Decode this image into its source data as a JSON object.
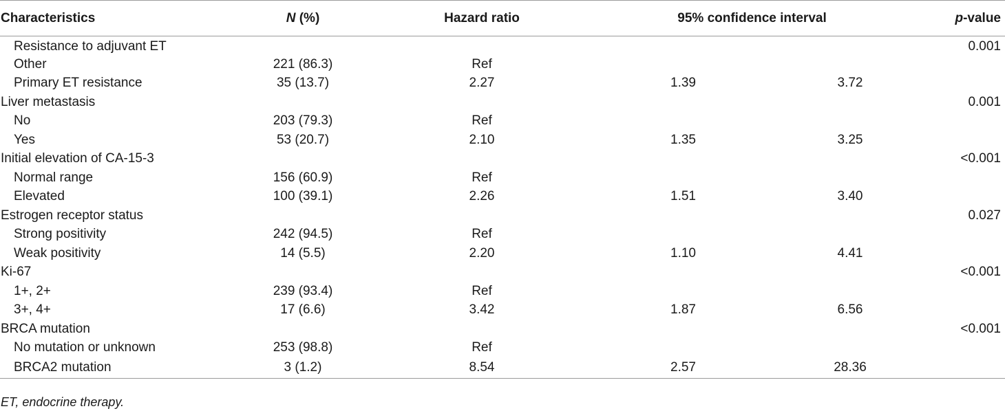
{
  "headers": {
    "characteristics": "Characteristics",
    "n_italic": "N",
    "n_suffix": " (%)",
    "hazard_ratio": "Hazard ratio",
    "ci": "95% confidence interval",
    "p_italic": "p",
    "p_suffix": "-value"
  },
  "rows": [
    {
      "label": "Resistance to adjuvant ET",
      "type": "sub",
      "n": "",
      "hr": "",
      "ci_low": "",
      "ci_high": "",
      "p": "0.001"
    },
    {
      "label": "Other",
      "type": "sub",
      "n": "221 (86.3)",
      "hr": "Ref",
      "ci_low": "",
      "ci_high": "",
      "p": ""
    },
    {
      "label": "Primary ET resistance",
      "type": "sub",
      "n": "35 (13.7)",
      "hr": "2.27",
      "ci_low": "1.39",
      "ci_high": "3.72",
      "p": ""
    },
    {
      "label": "Liver metastasis",
      "type": "group",
      "n": "",
      "hr": "",
      "ci_low": "",
      "ci_high": "",
      "p": "0.001"
    },
    {
      "label": "No",
      "type": "sub",
      "n": "203 (79.3)",
      "hr": "Ref",
      "ci_low": "",
      "ci_high": "",
      "p": ""
    },
    {
      "label": "Yes",
      "type": "sub",
      "n": "53 (20.7)",
      "hr": "2.10",
      "ci_low": "1.35",
      "ci_high": "3.25",
      "p": ""
    },
    {
      "label": "Initial elevation of CA-15-3",
      "type": "group",
      "n": "",
      "hr": "",
      "ci_low": "",
      "ci_high": "",
      "p": "<0.001"
    },
    {
      "label": "Normal range",
      "type": "sub",
      "n": "156 (60.9)",
      "hr": "Ref",
      "ci_low": "",
      "ci_high": "",
      "p": ""
    },
    {
      "label": "Elevated",
      "type": "sub",
      "n": "100 (39.1)",
      "hr": "2.26",
      "ci_low": "1.51",
      "ci_high": "3.40",
      "p": ""
    },
    {
      "label": "Estrogen receptor status",
      "type": "group",
      "n": "",
      "hr": "",
      "ci_low": "",
      "ci_high": "",
      "p": "0.027"
    },
    {
      "label": "Strong positivity",
      "type": "sub",
      "n": "242 (94.5)",
      "hr": "Ref",
      "ci_low": "",
      "ci_high": "",
      "p": ""
    },
    {
      "label": "Weak positivity",
      "type": "sub",
      "n": "14 (5.5)",
      "hr": "2.20",
      "ci_low": "1.10",
      "ci_high": "4.41",
      "p": ""
    },
    {
      "label": "Ki-67",
      "type": "group",
      "n": "",
      "hr": "",
      "ci_low": "",
      "ci_high": "",
      "p": "<0.001"
    },
    {
      "label": "1+, 2+",
      "type": "sub",
      "n": "239 (93.4)",
      "hr": "Ref",
      "ci_low": "",
      "ci_high": "",
      "p": ""
    },
    {
      "label": "3+, 4+",
      "type": "sub",
      "n": "17 (6.6)",
      "hr": "3.42",
      "ci_low": "1.87",
      "ci_high": "6.56",
      "p": ""
    },
    {
      "label": "BRCA mutation",
      "type": "group",
      "n": "",
      "hr": "",
      "ci_low": "",
      "ci_high": "",
      "p": "<0.001"
    },
    {
      "label": "No mutation or unknown",
      "type": "sub",
      "n": "253 (98.8)",
      "hr": "Ref",
      "ci_low": "",
      "ci_high": "",
      "p": ""
    },
    {
      "label": "BRCA2 mutation",
      "type": "sub",
      "n": "3 (1.2)",
      "hr": "8.54",
      "ci_low": "2.57",
      "ci_high": "28.36",
      "p": ""
    }
  ],
  "footnote": "ET, endocrine therapy."
}
